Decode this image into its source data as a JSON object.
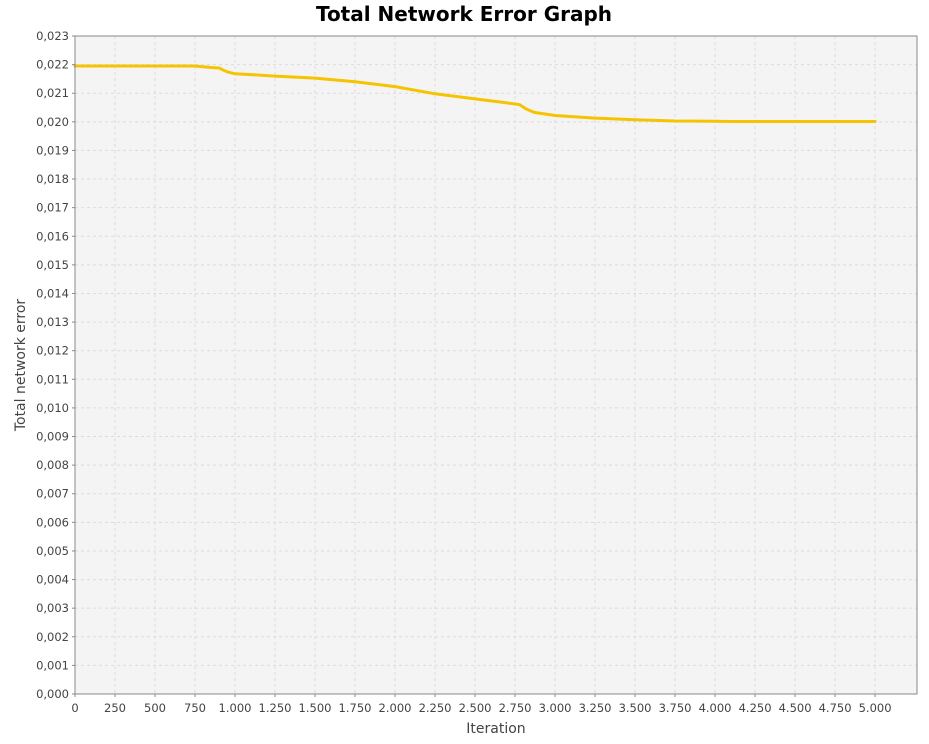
{
  "chart_data": {
    "type": "line",
    "title": "Total Network Error Graph",
    "xlabel": "Iteration",
    "ylabel": "Total network error",
    "xlim": [
      0,
      5262
    ],
    "ylim": [
      0.0,
      0.023
    ],
    "grid": true,
    "legend": "none",
    "x_ticks": [
      0,
      250,
      500,
      750,
      1000,
      1250,
      1500,
      1750,
      2000,
      2250,
      2500,
      2750,
      3000,
      3250,
      3500,
      3750,
      4000,
      4250,
      4500,
      4750,
      5000
    ],
    "x_tick_labels": [
      "0",
      "250",
      "500",
      "750",
      "1.000",
      "1.250",
      "1.500",
      "1.750",
      "2.000",
      "2.250",
      "2.500",
      "2.750",
      "3.000",
      "3.250",
      "3.500",
      "3.750",
      "4.000",
      "4.250",
      "4.500",
      "4.750",
      "5.000"
    ],
    "y_ticks": [
      0.0,
      0.001,
      0.002,
      0.003,
      0.004,
      0.005,
      0.006,
      0.007,
      0.008,
      0.009,
      0.01,
      0.011,
      0.012,
      0.013,
      0.014,
      0.015,
      0.016,
      0.017,
      0.018,
      0.019,
      0.02,
      0.021,
      0.022,
      0.023
    ],
    "y_tick_labels": [
      "0,000",
      "0,001",
      "0,002",
      "0,003",
      "0,004",
      "0,005",
      "0,006",
      "0,007",
      "0,008",
      "0,009",
      "0,010",
      "0,011",
      "0,012",
      "0,013",
      "0,014",
      "0,015",
      "0,016",
      "0,017",
      "0,018",
      "0,019",
      "0,020",
      "0,021",
      "0,022",
      "0,023"
    ],
    "series": [
      {
        "color": "#f5c400",
        "x": [
          0,
          250,
          500,
          750,
          850,
          900,
          950,
          1000,
          1100,
          1250,
          1500,
          1750,
          2000,
          2250,
          2500,
          2700,
          2780,
          2820,
          2870,
          3000,
          3250,
          3500,
          3750,
          4000,
          4100,
          4250,
          4500,
          4750,
          5000
        ],
        "y": [
          0.02195,
          0.02195,
          0.02195,
          0.02195,
          0.0219,
          0.02188,
          0.02175,
          0.02168,
          0.02165,
          0.0216,
          0.02153,
          0.0214,
          0.02123,
          0.02098,
          0.0208,
          0.02066,
          0.0206,
          0.02045,
          0.02033,
          0.02022,
          0.02013,
          0.02007,
          0.02003,
          0.02002,
          0.02001,
          0.02001,
          0.02001,
          0.02001,
          0.02001
        ]
      }
    ]
  },
  "colors": {
    "plot_background": "#f4f4f4",
    "grid": "#dcdcdc",
    "axis": "#888888"
  }
}
